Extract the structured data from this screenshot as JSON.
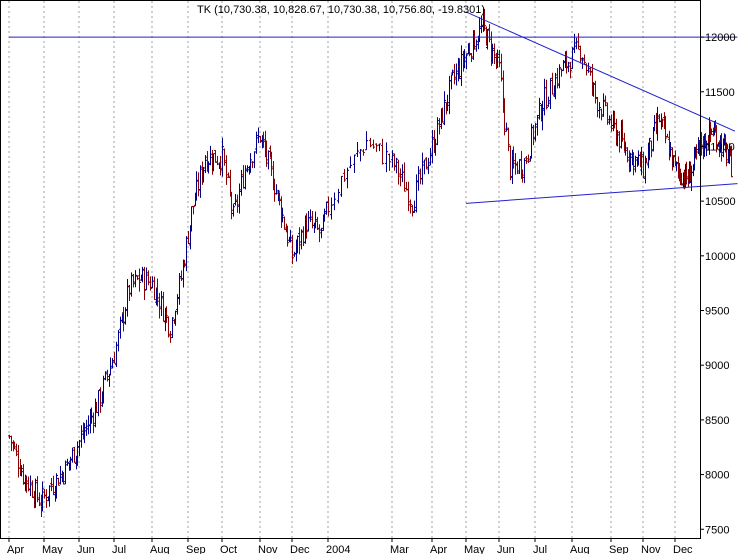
{
  "chart_data": {
    "type": "ohlc",
    "title": "TK (10,730.38, 10,828.67, 10,730.38, 10,756.80, -19.8301)",
    "xlabel": "",
    "ylabel": "",
    "ylim": [
      7420,
      12330
    ],
    "y_ticks": [
      7500,
      8000,
      8500,
      9000,
      9500,
      10000,
      10500,
      11000,
      11500,
      12000
    ],
    "x_tick_labels": [
      "Apr",
      "May",
      "Jun",
      "Jul",
      "Aug",
      "Sep",
      "Oct",
      "Nov",
      "Dec",
      "2004",
      "Mar",
      "Apr",
      "May",
      "Jun",
      "Jul",
      "Aug",
      "Sep",
      "Nov",
      "Dec"
    ],
    "grid": "vertical dotted",
    "up_color": "#00008b",
    "down_color": "#8b0000",
    "line_color": "#2222cc",
    "price_path": [
      {
        "m": 0.0,
        "v": 8350
      },
      {
        "m": 0.4,
        "v": 8000
      },
      {
        "m": 0.9,
        "v": 7750
      },
      {
        "m": 1.2,
        "v": 7900
      },
      {
        "m": 1.6,
        "v": 8050
      },
      {
        "m": 2.0,
        "v": 8300
      },
      {
        "m": 2.6,
        "v": 8700
      },
      {
        "m": 3.0,
        "v": 9100
      },
      {
        "m": 3.4,
        "v": 9700
      },
      {
        "m": 3.7,
        "v": 9800
      },
      {
        "m": 4.0,
        "v": 9750
      },
      {
        "m": 4.5,
        "v": 9350
      },
      {
        "m": 4.8,
        "v": 9800
      },
      {
        "m": 5.1,
        "v": 10400
      },
      {
        "m": 5.5,
        "v": 10900
      },
      {
        "m": 6.0,
        "v": 10900
      },
      {
        "m": 6.3,
        "v": 10350
      },
      {
        "m": 6.6,
        "v": 10800
      },
      {
        "m": 7.0,
        "v": 11100
      },
      {
        "m": 7.5,
        "v": 10600
      },
      {
        "m": 8.0,
        "v": 10000
      },
      {
        "m": 8.4,
        "v": 10300
      },
      {
        "m": 8.8,
        "v": 10200
      },
      {
        "m": 9.2,
        "v": 10700
      },
      {
        "m": 9.6,
        "v": 11050
      },
      {
        "m": 10.1,
        "v": 10800
      },
      {
        "m": 10.5,
        "v": 10500
      },
      {
        "m": 11.0,
        "v": 11000
      },
      {
        "m": 11.6,
        "v": 11600
      },
      {
        "m": 12.1,
        "v": 11900
      },
      {
        "m": 12.5,
        "v": 12100
      },
      {
        "m": 13.0,
        "v": 11700
      },
      {
        "m": 13.3,
        "v": 10800
      },
      {
        "m": 13.7,
        "v": 10850
      },
      {
        "m": 14.2,
        "v": 11400
      },
      {
        "m": 14.7,
        "v": 11700
      },
      {
        "m": 15.2,
        "v": 11900
      },
      {
        "m": 15.6,
        "v": 11450
      },
      {
        "m": 16.0,
        "v": 11200
      },
      {
        "m": 16.5,
        "v": 10950
      },
      {
        "m": 17.0,
        "v": 10800
      },
      {
        "m": 17.5,
        "v": 11250
      },
      {
        "m": 18.0,
        "v": 10800
      },
      {
        "m": 18.5,
        "v": 10700
      },
      {
        "m": 19.0,
        "v": 11000
      },
      {
        "m": 19.5,
        "v": 11150
      },
      {
        "m": 20.0,
        "v": 10950
      },
      {
        "m": 20.3,
        "v": 10800
      }
    ],
    "trendlines": [
      {
        "name": "horizontal-resistance",
        "points": [
          [
            0.0,
            12000
          ],
          [
            20.5,
            12000
          ]
        ]
      },
      {
        "name": "descending-trendline",
        "points": [
          [
            12.0,
            12230
          ],
          [
            20.4,
            11140
          ]
        ]
      },
      {
        "name": "rising-support",
        "points": [
          [
            12.0,
            10480
          ],
          [
            20.5,
            10660
          ]
        ]
      }
    ]
  }
}
